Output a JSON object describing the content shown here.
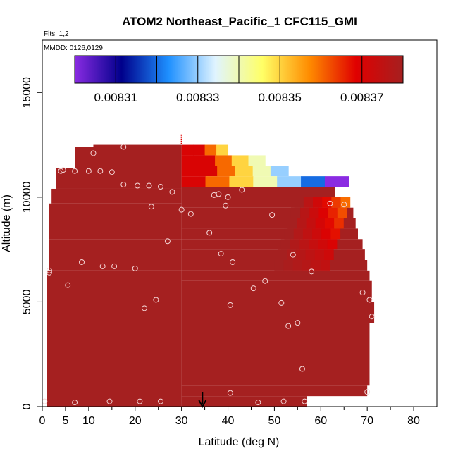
{
  "chart_data": {
    "type": "heatmap",
    "title": "ATOM2 Northeast_Pacific_1 CFC115_GMI",
    "flights_label": "Flts: 1,2",
    "date_label": "MMDD: 0126,0129",
    "xlabel": "Latitude (deg N)",
    "ylabel": "Altitude (m)",
    "xlim": [
      0,
      85
    ],
    "ylim": [
      0,
      17500
    ],
    "x_ticks": [
      0,
      5,
      10,
      20,
      30,
      40,
      50,
      60,
      70,
      80
    ],
    "y_ticks": [
      0,
      5000,
      10000,
      15000
    ],
    "colorbar": {
      "min": 0.0083,
      "max": 0.00838,
      "ticks": [
        0.00831,
        0.00833,
        0.00835,
        0.00837
      ],
      "tick_labels": [
        "0.00831",
        "0.00833",
        "0.00835",
        "0.00837"
      ],
      "colors": [
        "#8a2be2",
        "#00008b",
        "#1e90ff",
        "#e0f4ff",
        "#ffff66",
        "#ff8c00",
        "#e00000",
        "#a52020"
      ]
    },
    "background_value": 0.00838,
    "upper_band_values": [
      {
        "alt": 12000,
        "lat_start": 30,
        "lat_end": 40,
        "values": [
          0.00837,
          0.00837,
          0.00836,
          0.00835
        ]
      },
      {
        "alt": 11500,
        "lat_start": 30,
        "lat_end": 48,
        "values": [
          0.00837,
          0.00837,
          0.00836,
          0.00835,
          0.00834
        ]
      },
      {
        "alt": 11000,
        "lat_start": 30,
        "lat_end": 53,
        "values": [
          0.00837,
          0.00837,
          0.00836,
          0.00835,
          0.00834,
          0.00833
        ]
      },
      {
        "alt": 10500,
        "lat_start": 30,
        "lat_end": 66,
        "values": [
          0.00837,
          0.00836,
          0.00835,
          0.00834,
          0.00833,
          0.00832,
          0.0083
        ]
      }
    ],
    "profile_points": [
      {
        "lat": 11,
        "alt": 12100
      },
      {
        "lat": 17.5,
        "alt": 12400
      },
      {
        "lat": 4,
        "alt": 11250
      },
      {
        "lat": 4.5,
        "alt": 11300
      },
      {
        "lat": 7,
        "alt": 11250
      },
      {
        "lat": 10,
        "alt": 11250
      },
      {
        "lat": 12.5,
        "alt": 11250
      },
      {
        "lat": 15,
        "alt": 11200
      },
      {
        "lat": 17.5,
        "alt": 10600
      },
      {
        "lat": 20.5,
        "alt": 10550
      },
      {
        "lat": 23,
        "alt": 10550
      },
      {
        "lat": 25.5,
        "alt": 10500
      },
      {
        "lat": 28,
        "alt": 10250
      },
      {
        "lat": 37,
        "alt": 10100
      },
      {
        "lat": 38,
        "alt": 10150
      },
      {
        "lat": 40,
        "alt": 10000
      },
      {
        "lat": 43,
        "alt": 10350
      },
      {
        "lat": 39.5,
        "alt": 9600
      },
      {
        "lat": 23.5,
        "alt": 9550
      },
      {
        "lat": 30,
        "alt": 9400
      },
      {
        "lat": 32,
        "alt": 9200
      },
      {
        "lat": 49.5,
        "alt": 9150
      },
      {
        "lat": 62,
        "alt": 9700
      },
      {
        "lat": 65,
        "alt": 9650
      },
      {
        "lat": 36,
        "alt": 8300
      },
      {
        "lat": 27,
        "alt": 7900
      },
      {
        "lat": 38.5,
        "alt": 7300
      },
      {
        "lat": 54,
        "alt": 7250
      },
      {
        "lat": 8.5,
        "alt": 6900
      },
      {
        "lat": 13,
        "alt": 6700
      },
      {
        "lat": 15.5,
        "alt": 6700
      },
      {
        "lat": 20,
        "alt": 6600
      },
      {
        "lat": 41,
        "alt": 6900
      },
      {
        "lat": 1.5,
        "alt": 6500
      },
      {
        "lat": 1.5,
        "alt": 6400
      },
      {
        "lat": 58,
        "alt": 6450
      },
      {
        "lat": 5.5,
        "alt": 5800
      },
      {
        "lat": 45.5,
        "alt": 5650
      },
      {
        "lat": 48,
        "alt": 6000
      },
      {
        "lat": 69,
        "alt": 5450
      },
      {
        "lat": 70.5,
        "alt": 5100
      },
      {
        "lat": 24.5,
        "alt": 5100
      },
      {
        "lat": 22,
        "alt": 4700
      },
      {
        "lat": 40.5,
        "alt": 4850
      },
      {
        "lat": 51.5,
        "alt": 4950
      },
      {
        "lat": 71,
        "alt": 4300
      },
      {
        "lat": 55,
        "alt": 4000
      },
      {
        "lat": 53,
        "alt": 3850
      },
      {
        "lat": 56,
        "alt": 1800
      },
      {
        "lat": 40.5,
        "alt": 650
      },
      {
        "lat": 70,
        "alt": 700
      },
      {
        "lat": 0.5,
        "alt": 250
      },
      {
        "lat": 7,
        "alt": 200
      },
      {
        "lat": 14.5,
        "alt": 250
      },
      {
        "lat": 21,
        "alt": 250
      },
      {
        "lat": 25.5,
        "alt": 250
      },
      {
        "lat": 46.5,
        "alt": 200
      },
      {
        "lat": 52,
        "alt": 250
      },
      {
        "lat": 56.5,
        "alt": 250
      }
    ],
    "arrow_lat": 34.5
  }
}
